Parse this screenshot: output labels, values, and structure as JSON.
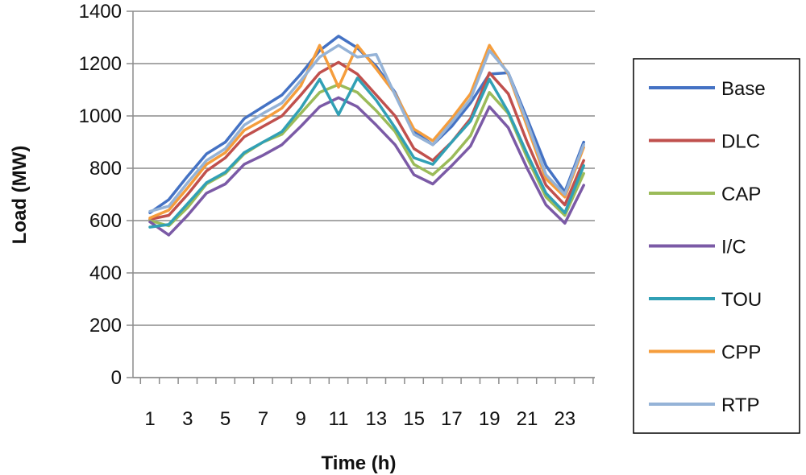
{
  "chart_data": {
    "type": "line",
    "title": "",
    "xlabel": "Time (h)",
    "ylabel": "Load (MW)",
    "ylim": [
      0,
      1400
    ],
    "yticks": [
      0,
      200,
      400,
      600,
      800,
      1000,
      1200,
      1400
    ],
    "x": [
      1,
      2,
      3,
      4,
      5,
      6,
      7,
      8,
      9,
      10,
      11,
      12,
      13,
      14,
      15,
      16,
      17,
      18,
      19,
      20,
      21,
      22,
      23,
      24
    ],
    "xtick_labels": [
      "1",
      "3",
      "5",
      "7",
      "9",
      "11",
      "13",
      "15",
      "17",
      "19",
      "21",
      "23"
    ],
    "xtick_values": [
      1,
      3,
      5,
      7,
      9,
      11,
      13,
      15,
      17,
      19,
      21,
      23
    ],
    "grid": "horizontal",
    "legend_position": "right",
    "series": [
      {
        "name": "Base",
        "color": "#4472C4",
        "values": [
          630,
          680,
          770,
          855,
          900,
          990,
          1035,
          1080,
          1160,
          1250,
          1305,
          1260,
          1190,
          1090,
          940,
          890,
          960,
          1050,
          1160,
          1165,
          990,
          810,
          710,
          900
        ]
      },
      {
        "name": "DLC",
        "color": "#C0504D",
        "values": [
          605,
          620,
          700,
          790,
          840,
          920,
          960,
          1000,
          1080,
          1165,
          1205,
          1160,
          1080,
          1000,
          875,
          830,
          900,
          990,
          1165,
          1085,
          900,
          735,
          660,
          830
        ]
      },
      {
        "name": "CAP",
        "color": "#9BBB59",
        "values": [
          600,
          580,
          650,
          740,
          780,
          855,
          900,
          930,
          1010,
          1090,
          1120,
          1090,
          1020,
          940,
          815,
          775,
          840,
          925,
          1090,
          1010,
          840,
          690,
          620,
          780
        ]
      },
      {
        "name": "I/C",
        "color": "#7B5AA6",
        "values": [
          595,
          545,
          620,
          705,
          740,
          815,
          850,
          890,
          960,
          1035,
          1070,
          1035,
          965,
          890,
          775,
          740,
          810,
          885,
          1035,
          955,
          800,
          660,
          590,
          735
        ]
      },
      {
        "name": "TOU",
        "color": "#31A0B5",
        "values": [
          575,
          585,
          665,
          745,
          785,
          860,
          900,
          940,
          1030,
          1140,
          1005,
          1145,
          1060,
          955,
          840,
          815,
          900,
          980,
          1140,
          1015,
          855,
          705,
          630,
          810
        ]
      },
      {
        "name": "CPP",
        "color": "#F59D3C",
        "values": [
          610,
          640,
          725,
          815,
          860,
          945,
          985,
          1030,
          1115,
          1270,
          1110,
          1270,
          1180,
          1085,
          950,
          905,
          990,
          1085,
          1270,
          1160,
          960,
          760,
          690,
          880
        ]
      },
      {
        "name": "RTP",
        "color": "#95B3D7",
        "values": [
          635,
          655,
          745,
          830,
          875,
          965,
          1010,
          1050,
          1135,
          1225,
          1270,
          1225,
          1235,
          1080,
          930,
          890,
          975,
          1065,
          1250,
          1165,
          975,
          775,
          700,
          890
        ]
      }
    ]
  }
}
